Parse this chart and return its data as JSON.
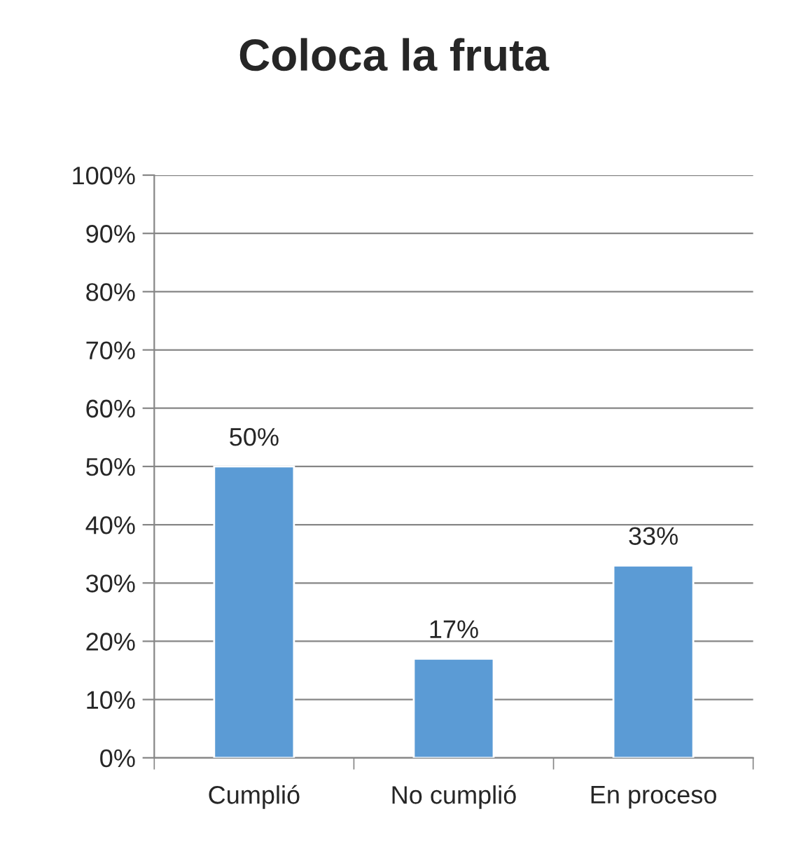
{
  "chart_data": {
    "type": "bar",
    "title": "Coloca la fruta",
    "categories": [
      "Cumplió",
      "No cumplió",
      "En proceso"
    ],
    "values": [
      50,
      17,
      33
    ],
    "color": "#5b9bd5",
    "value_labels": [
      "50%",
      "17%",
      "33%"
    ],
    "ylim": [
      0,
      100
    ],
    "yticks": [
      {
        "value": 0,
        "label": "0%"
      },
      {
        "value": 10,
        "label": "10%"
      },
      {
        "value": 20,
        "label": "20%"
      },
      {
        "value": 30,
        "label": "30%"
      },
      {
        "value": 40,
        "label": "40%"
      },
      {
        "value": 50,
        "label": "50%"
      },
      {
        "value": 60,
        "label": "60%"
      },
      {
        "value": 70,
        "label": "70%"
      },
      {
        "value": 80,
        "label": "80%"
      },
      {
        "value": 90,
        "label": "90%"
      },
      {
        "value": 100,
        "label": "100%"
      }
    ],
    "grid": "y",
    "legend": false
  }
}
